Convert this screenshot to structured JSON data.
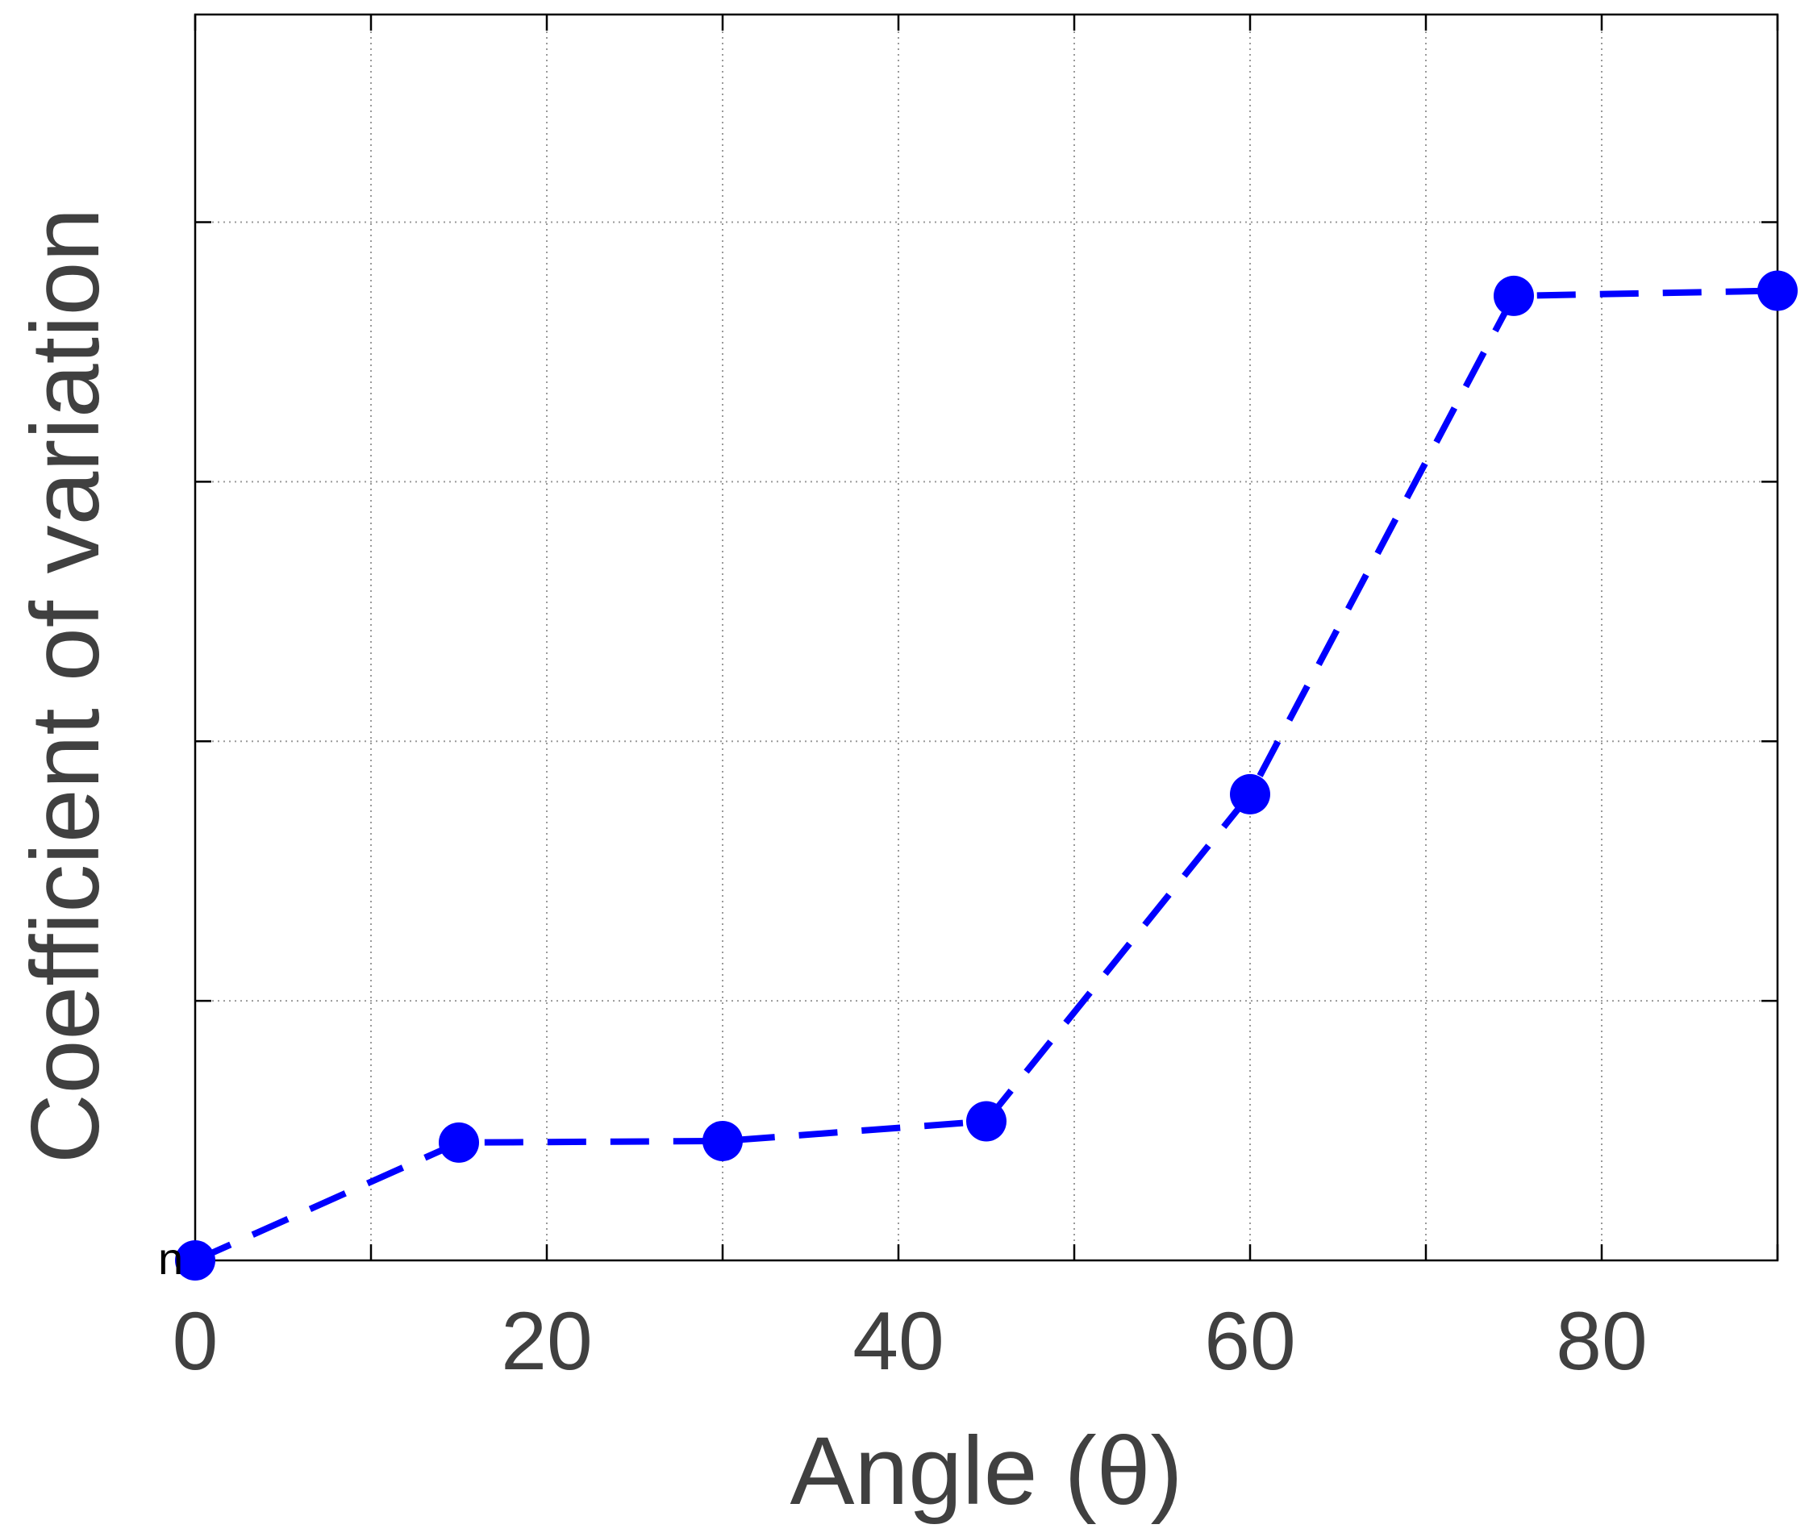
{
  "chart_data": {
    "type": "line",
    "x": [
      0,
      15,
      30,
      45,
      60,
      75,
      90
    ],
    "series": [
      {
        "values": [
          0,
          0.227,
          0.23,
          0.268,
          0.898,
          1.858,
          1.868
        ],
        "line_style": "dashed",
        "marker": "filled-circle"
      }
    ],
    "xlabel": "Angle (θ)",
    "ylabel": "Coefficient of variation",
    "x_ticks": [
      "0",
      "20",
      "40",
      "60",
      "80"
    ],
    "y_tick_labels_visible": false,
    "xlim": [
      0,
      90
    ],
    "ylim": [
      0,
      2.4
    ],
    "grid": true,
    "colors": {
      "series": "#0000ff",
      "axes": "#000000",
      "grid": "#9a9a9a",
      "text": "#404040"
    }
  },
  "stray_glyph": "n"
}
